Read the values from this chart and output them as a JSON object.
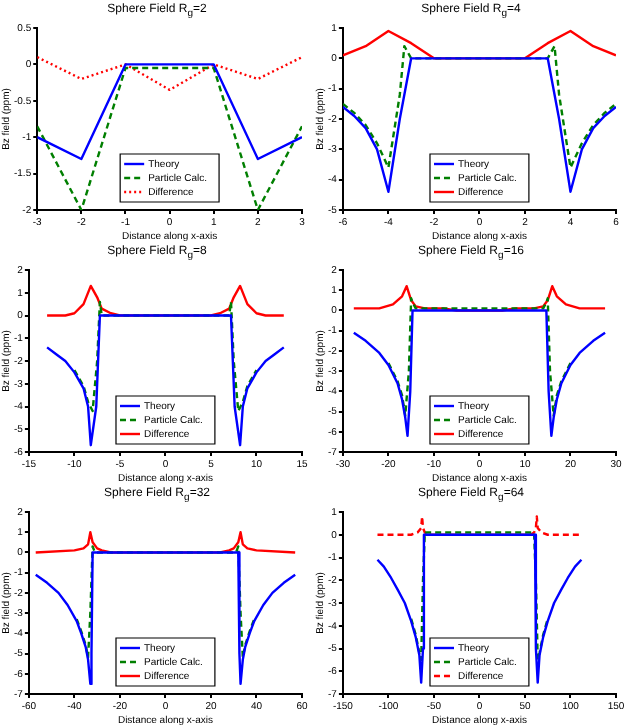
{
  "chart_data": [
    {
      "type": "line",
      "title": "Sphere Field R$_{g}$=2",
      "xlabel": "Distance along x-axis",
      "ylabel": "Bz field (ppm)",
      "xlim": [
        -3,
        3
      ],
      "xticks": [
        -3,
        -2,
        -1,
        0,
        1,
        2,
        3
      ],
      "ylim": [
        -2,
        0.5
      ],
      "yticks": [
        -2,
        -1.5,
        -1,
        -0.5,
        0,
        0.5
      ],
      "grid": false,
      "legend": "bottom",
      "marker": "none",
      "series": [
        {
          "name": "Theory",
          "color": "#0000ff",
          "line_style": "solid",
          "x": [
            -3,
            -2,
            -1,
            1,
            2,
            3
          ],
          "values": [
            -1,
            -1.3,
            0,
            0,
            -1.3,
            -1
          ]
        },
        {
          "name": "Particle Calc.",
          "color": "#007f00",
          "line_style": "dashed",
          "x": [
            -3,
            -2,
            -1,
            1,
            2,
            3
          ],
          "values": [
            -0.85,
            -2,
            -0.05,
            -0.05,
            -2,
            -0.85
          ]
        },
        {
          "name": "Difference",
          "color": "#ff0000",
          "line_style": "dotted",
          "x": [
            -3,
            -2,
            -1,
            0,
            1,
            2,
            3
          ],
          "values": [
            0.1,
            -0.2,
            0,
            -0.35,
            0,
            -0.2,
            0.1
          ]
        }
      ]
    },
    {
      "type": "line",
      "title": "Sphere Field R$_{g}$=4",
      "xlabel": "Distance along x-axis",
      "ylabel": "Bz field (ppm)",
      "xlim": [
        -6,
        6
      ],
      "xticks": [
        -6,
        -4,
        -2,
        0,
        2,
        4,
        6
      ],
      "ylim": [
        -5,
        1
      ],
      "yticks": [
        -5,
        -4,
        -3,
        -2,
        -1,
        0,
        1
      ],
      "grid": false,
      "legend": "bottom",
      "marker": "none",
      "series": [
        {
          "name": "Theory",
          "color": "#0000ff",
          "line_style": "solid",
          "x": [
            -6,
            -5.5,
            -5,
            -4.5,
            -4,
            -3.5,
            -3,
            3,
            3.5,
            4,
            4.5,
            5,
            5.5,
            6
          ],
          "values": [
            -1.6,
            -1.9,
            -2.3,
            -3,
            -4.4,
            -2,
            0,
            0,
            -2,
            -4.4,
            -3,
            -2.3,
            -1.9,
            -1.6
          ]
        },
        {
          "name": "Particle Calc.",
          "color": "#007f00",
          "line_style": "dashed",
          "x": [
            -6,
            -5.5,
            -5,
            -4.5,
            -4,
            -3.5,
            -3.3,
            -3,
            3,
            3.3,
            3.5,
            4,
            4.5,
            5,
            5.5,
            6
          ],
          "values": [
            -1.5,
            -1.8,
            -2.2,
            -2.8,
            -3.6,
            -1.2,
            0.4,
            0,
            0,
            0.4,
            -1.2,
            -3.6,
            -2.8,
            -2.2,
            -1.8,
            -1.5
          ]
        },
        {
          "name": "Difference",
          "color": "#ff0000",
          "line_style": "solid",
          "x": [
            -6,
            -5,
            -4,
            -3,
            -2,
            2,
            3,
            4,
            5,
            6
          ],
          "values": [
            0.1,
            0.4,
            0.9,
            0.5,
            0,
            0,
            0.5,
            0.9,
            0.4,
            0.1
          ]
        }
      ]
    },
    {
      "type": "line",
      "title": "Sphere Field R$_{g}$=8",
      "xlabel": "Distance along x-axis",
      "ylabel": "Bz field (ppm)",
      "xlim": [
        -15,
        15
      ],
      "xticks": [
        -15,
        -10,
        -5,
        0,
        5,
        10,
        15
      ],
      "ylim": [
        -6,
        2
      ],
      "yticks": [
        -6,
        -5,
        -4,
        -3,
        -2,
        -1,
        0,
        1,
        2
      ],
      "grid": false,
      "legend": "bottom",
      "marker": "none",
      "series": [
        {
          "name": "Theory",
          "color": "#0000ff",
          "line_style": "solid",
          "x": [
            -13,
            -12,
            -11,
            -10,
            -9,
            -8.5,
            -8.2,
            -7.6,
            -7.2,
            7.2,
            7.6,
            8.2,
            8.5,
            9,
            10,
            11,
            12,
            13
          ],
          "values": [
            -1.4,
            -1.7,
            -2,
            -2.5,
            -3.2,
            -4,
            -5.7,
            -4,
            0,
            0,
            -4,
            -5.7,
            -4,
            -3.2,
            -2.5,
            -2,
            -1.7,
            -1.4
          ]
        },
        {
          "name": "Particle Calc.",
          "color": "#007f00",
          "line_style": "dashed",
          "x": [
            -10,
            -9,
            -8.5,
            -8,
            -7.5,
            -7.2,
            -7,
            7,
            7.2,
            7.5,
            8,
            8.5,
            9,
            10
          ],
          "values": [
            -2.4,
            -3.1,
            -3.8,
            -4.2,
            -2,
            0.6,
            0,
            0,
            0.6,
            -2,
            -4.2,
            -3.8,
            -3.1,
            -2.4
          ]
        },
        {
          "name": "Difference",
          "color": "#ff0000",
          "line_style": "solid",
          "x": [
            -13,
            -11,
            -10,
            -9,
            -8.2,
            -7.5,
            -7,
            -6,
            -5,
            5,
            6,
            7,
            7.5,
            8.2,
            9,
            10,
            11,
            13
          ],
          "values": [
            0,
            0,
            0.1,
            0.5,
            1.3,
            0.8,
            0.3,
            0.1,
            0,
            0,
            0.1,
            0.3,
            0.8,
            1.3,
            0.5,
            0.1,
            0,
            0
          ]
        }
      ]
    },
    {
      "type": "line",
      "title": "Sphere Field R$_{g}$=16",
      "xlabel": "Distance along x-axis",
      "ylabel": "Bz field (ppm)",
      "xlim": [
        -30,
        30
      ],
      "xticks": [
        -30,
        -20,
        -10,
        0,
        10,
        20,
        30
      ],
      "ylim": [
        -7,
        2
      ],
      "yticks": [
        -7,
        -6,
        -5,
        -4,
        -3,
        -2,
        -1,
        0,
        1,
        2
      ],
      "grid": false,
      "legend": "bottom",
      "marker": "none",
      "series": [
        {
          "name": "Theory",
          "color": "#0000ff",
          "line_style": "solid",
          "x": [
            -27.6,
            -25,
            -22,
            -20,
            -18,
            -17,
            -16.3,
            -15.8,
            -15.2,
            -14.7,
            14.7,
            15.2,
            15.8,
            16.3,
            17,
            18,
            20,
            22,
            25,
            27.6
          ],
          "values": [
            -1.1,
            -1.5,
            -2.1,
            -2.7,
            -3.6,
            -4.4,
            -5.3,
            -6.2,
            -4,
            0,
            0,
            -4,
            -6.2,
            -5.3,
            -4.4,
            -3.6,
            -2.7,
            -2.1,
            -1.5,
            -1.1
          ]
        },
        {
          "name": "Particle Calc.",
          "color": "#007f00",
          "line_style": "dashed",
          "x": [
            -20,
            -18,
            -17,
            -16.3,
            -15.5,
            -15,
            -14.7,
            -14,
            14,
            14.7,
            15,
            15.5,
            16.3,
            17,
            18,
            20
          ],
          "values": [
            -2.6,
            -3.5,
            -4.2,
            -5.2,
            -3,
            0.6,
            0.4,
            0.1,
            0.1,
            0.4,
            0.6,
            -3,
            -5.2,
            -4.2,
            -3.5,
            -2.6
          ]
        },
        {
          "name": "Difference",
          "color": "#ff0000",
          "line_style": "solid",
          "x": [
            -27.6,
            -22,
            -19,
            -17,
            -16,
            -15,
            -14,
            -12,
            -8,
            -5,
            5,
            8,
            12,
            14,
            15,
            16,
            17,
            19,
            22,
            27.6
          ],
          "values": [
            0.1,
            0.1,
            0.3,
            0.7,
            1.2,
            0.5,
            0.2,
            0.1,
            0.1,
            0,
            0,
            0.1,
            0.1,
            0.2,
            0.5,
            1.2,
            0.7,
            0.3,
            0.1,
            0.1
          ]
        }
      ]
    },
    {
      "type": "line",
      "title": "Sphere Field R$_{g}$=32",
      "xlabel": "Distance along x-axis",
      "ylabel": "Bz field (ppm)",
      "xlim": [
        -60,
        60
      ],
      "xticks": [
        -60,
        -40,
        -20,
        0,
        20,
        40,
        60
      ],
      "ylim": [
        -7,
        2
      ],
      "yticks": [
        -7,
        -6,
        -5,
        -4,
        -3,
        -2,
        -1,
        0,
        1,
        2
      ],
      "grid": false,
      "legend": "bottom",
      "marker": "none",
      "series": [
        {
          "name": "Theory",
          "color": "#0000ff",
          "line_style": "solid",
          "x": [
            -57,
            -52,
            -47,
            -43,
            -39,
            -37,
            -35,
            -34,
            -33,
            -32.5,
            -32,
            32,
            32.5,
            33,
            34,
            35,
            37,
            39,
            43,
            47,
            52,
            57
          ],
          "values": [
            -1.1,
            -1.5,
            -2,
            -2.6,
            -3.4,
            -4,
            -4.7,
            -5.3,
            -6.5,
            -5,
            0,
            0,
            -5,
            -6.5,
            -5.3,
            -4.7,
            -4,
            -3.4,
            -2.6,
            -2,
            -1.5,
            -1.1
          ]
        },
        {
          "name": "Particle Calc.",
          "color": "#007f00",
          "line_style": "dashed",
          "x": [
            -39,
            -37,
            -35,
            -34,
            -33,
            -32,
            -31,
            31,
            32,
            33,
            34,
            35,
            37,
            39
          ],
          "values": [
            -3.3,
            -3.9,
            -4.6,
            -5.2,
            -3,
            0.3,
            0,
            0,
            0.3,
            -3,
            -5.2,
            -4.6,
            -3.9,
            -3.3
          ]
        },
        {
          "name": "Difference",
          "color": "#ff0000",
          "line_style": "solid",
          "x": [
            -57,
            -40,
            -36,
            -34,
            -33,
            -32,
            -30,
            -28,
            -24,
            24,
            28,
            30,
            32,
            33,
            34,
            36,
            40,
            57
          ],
          "values": [
            0,
            0.1,
            0.2,
            0.4,
            1,
            0.5,
            0.2,
            0.1,
            0,
            0,
            0.1,
            0.2,
            0.5,
            1,
            0.4,
            0.2,
            0.1,
            0
          ]
        }
      ]
    },
    {
      "type": "line",
      "title": "Sphere Field R$_{g}$=64",
      "xlabel": "Distance along x-axis",
      "ylabel": "Bz field (ppm)",
      "xlim": [
        -150,
        150
      ],
      "xticks": [
        -150,
        -100,
        -50,
        0,
        50,
        100,
        150
      ],
      "ylim": [
        -7,
        1
      ],
      "yticks": [
        -7,
        -6,
        -5,
        -4,
        -3,
        -2,
        -1,
        0,
        1
      ],
      "grid": false,
      "legend": "bottom",
      "marker": "none",
      "series": [
        {
          "name": "Theory",
          "color": "#0000ff",
          "line_style": "solid",
          "x": [
            -112,
            -105,
            -97,
            -90,
            -82,
            -75,
            -70,
            -66,
            -64,
            -62,
            -61,
            61,
            62,
            64,
            66,
            70,
            75,
            82,
            90,
            97,
            105,
            112
          ],
          "values": [
            -1.1,
            -1.4,
            -1.9,
            -2.4,
            -3,
            -3.8,
            -4.5,
            -5.3,
            -6.5,
            -5,
            0,
            0,
            -5,
            -6.5,
            -5.3,
            -4.5,
            -3.8,
            -3,
            -2.4,
            -1.9,
            -1.4,
            -1.1
          ]
        },
        {
          "name": "Particle Calc.",
          "color": "#007f00",
          "line_style": "dashed",
          "x": [
            -75,
            -70,
            -66,
            -64,
            -62,
            -60,
            60,
            62,
            64,
            66,
            70,
            75
          ],
          "values": [
            -3.7,
            -4.4,
            -5.2,
            -5.5,
            -2,
            0.1,
            0.1,
            -2,
            -5.5,
            -5.2,
            -4.4,
            -3.7
          ]
        },
        {
          "name": "Difference",
          "color": "#ff0000",
          "line_style": "dashed",
          "x": [
            -112,
            -75,
            -68,
            -64,
            -63,
            -62,
            -60,
            -56,
            -40,
            40,
            56,
            60,
            62,
            63,
            64,
            68,
            75,
            112
          ],
          "values": [
            0,
            0,
            0.1,
            0.3,
            0.8,
            0.3,
            0.1,
            0,
            0,
            0,
            0,
            0.1,
            0.3,
            0.8,
            0.3,
            0.1,
            0,
            0
          ]
        }
      ]
    }
  ]
}
